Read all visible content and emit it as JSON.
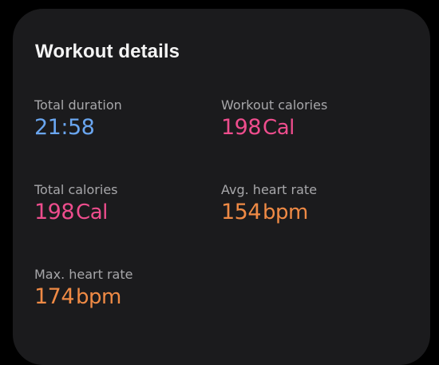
{
  "card": {
    "title": "Workout details"
  },
  "stats": {
    "total_duration": {
      "label": "Total duration",
      "value": "21:58",
      "unit": ""
    },
    "workout_calories": {
      "label": "Workout calories",
      "value": "198",
      "unit": "Cal"
    },
    "total_calories": {
      "label": "Total calories",
      "value": "198",
      "unit": "Cal"
    },
    "avg_heart_rate": {
      "label": "Avg. heart rate",
      "value": "154",
      "unit": "bpm"
    },
    "max_heart_rate": {
      "label": "Max. heart rate",
      "value": "174",
      "unit": "bpm"
    }
  },
  "colors": {
    "background": "#000000",
    "card": "#1b1b1d",
    "title": "#f4f4f4",
    "label": "#a7a7aa",
    "duration": "#6aa6f0",
    "calories": "#ee4d8d",
    "heart_rate": "#ef8a45"
  }
}
